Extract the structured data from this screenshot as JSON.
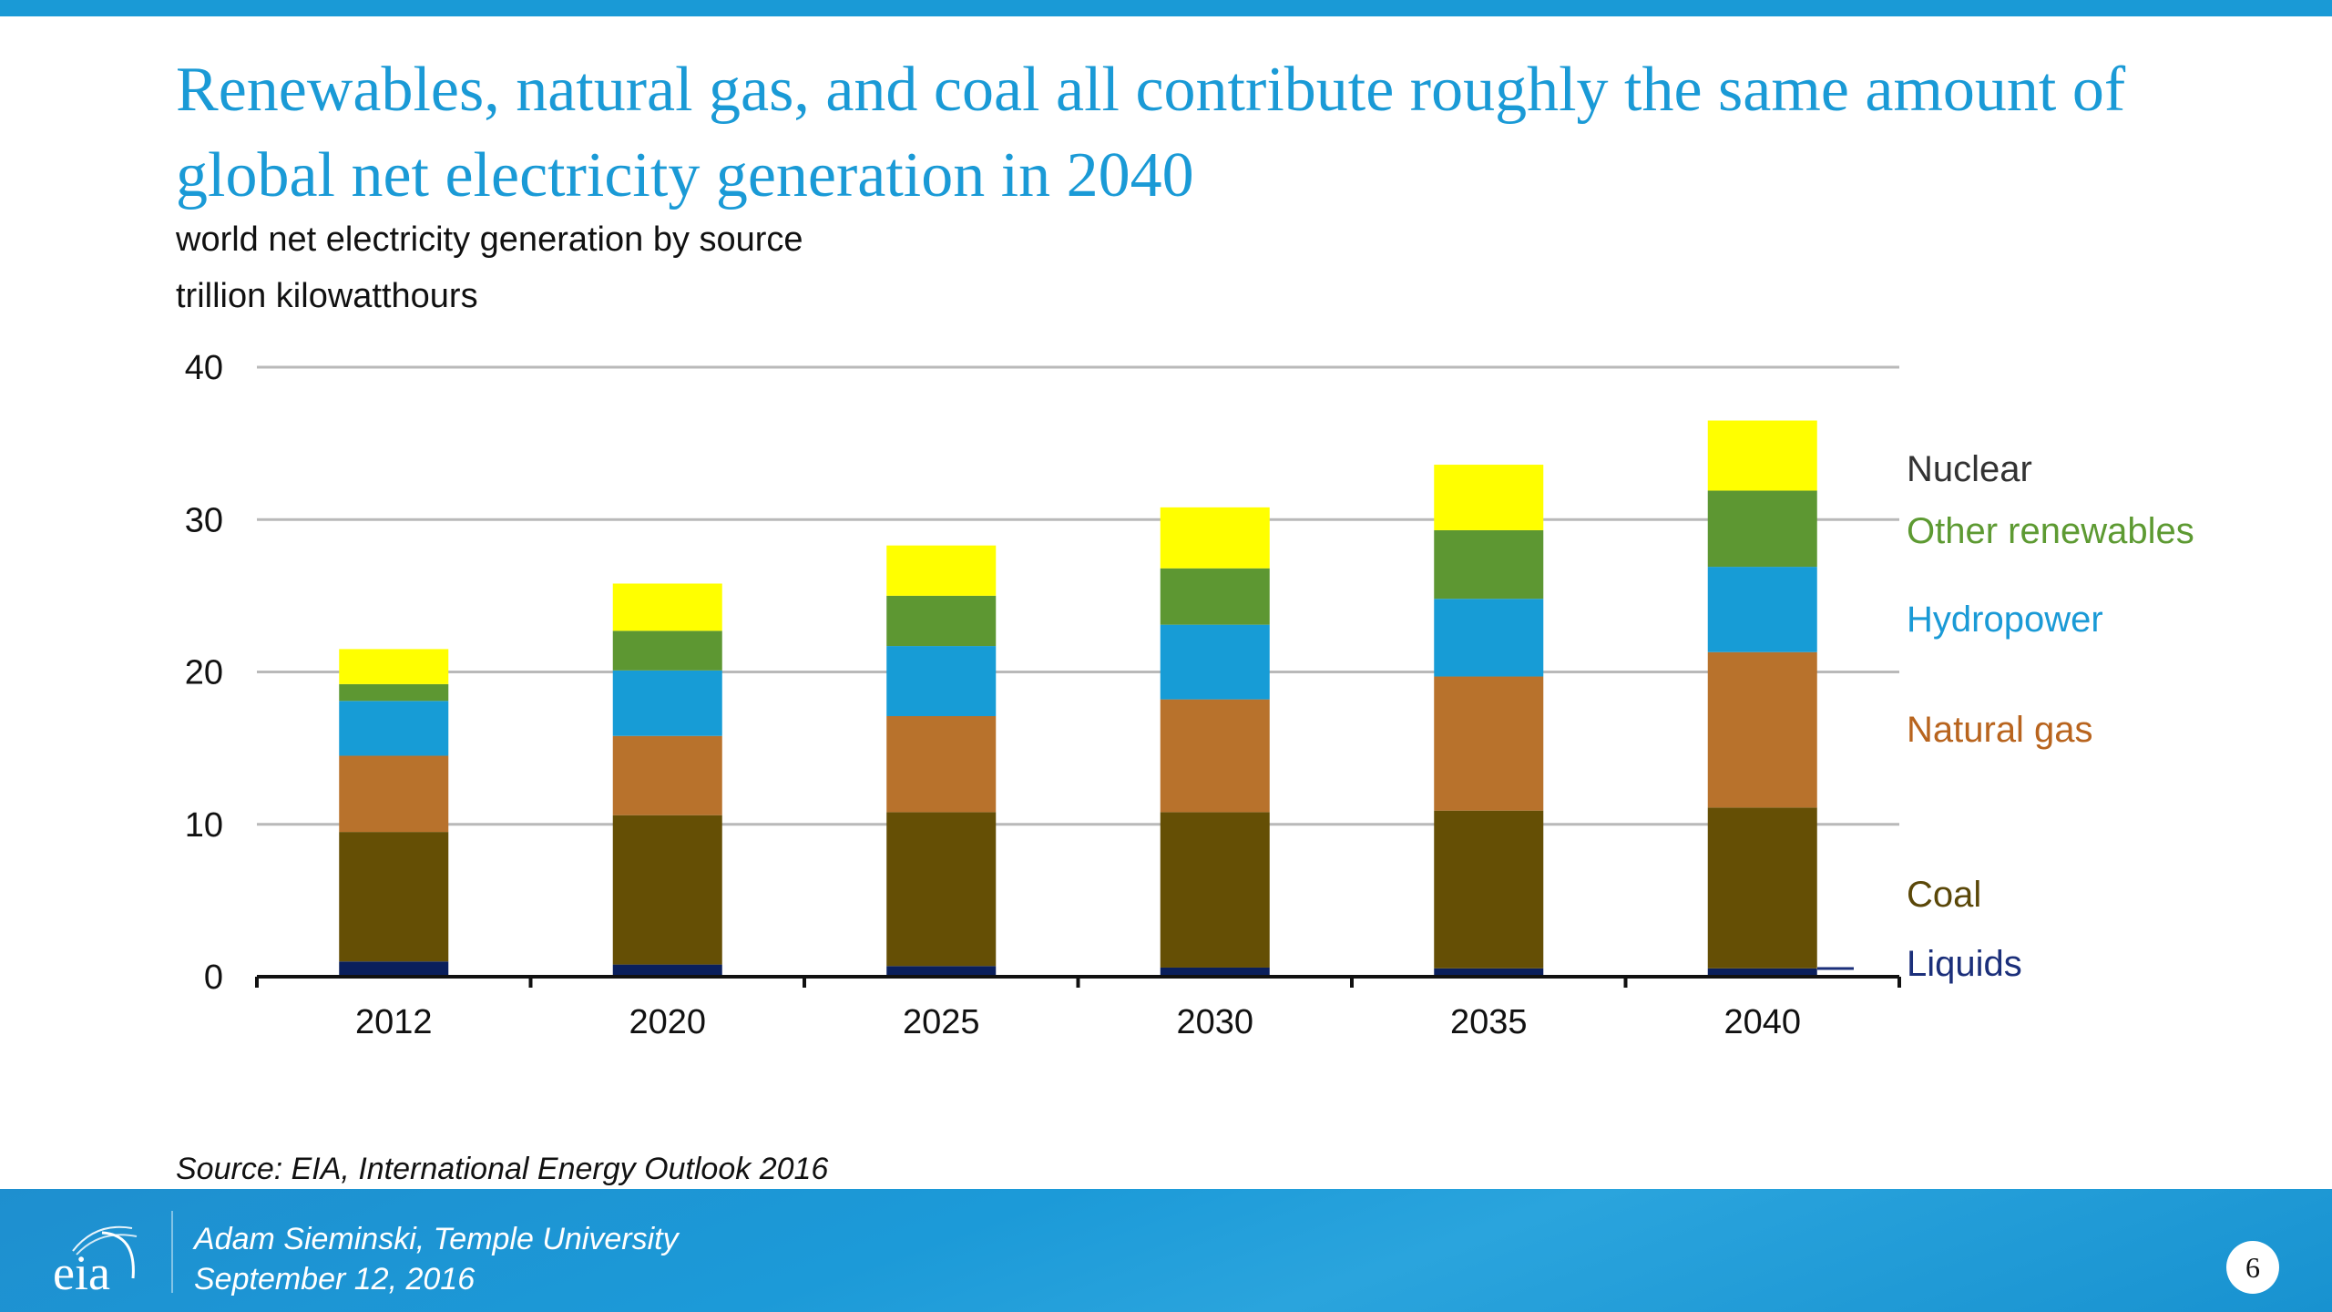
{
  "slide": {
    "title": "Renewables, natural gas, and coal all contribute roughly the same amount of global net electricity generation in 2040",
    "subtitle_line1": "world net electricity generation by source",
    "subtitle_line2": "trillion kilowatthours",
    "source": "Source:  EIA, International Energy Outlook 2016",
    "footer": {
      "logo_text": "eia",
      "presenter": "Adam Sieminski, Temple University",
      "date": "September 12, 2016",
      "page_number": "6"
    },
    "colors": {
      "accent": "#1a9ad6"
    }
  },
  "chart_data": {
    "type": "bar",
    "stacked": true,
    "title": "world net electricity generation by source",
    "ylabel": "trillion kilowatthours",
    "xlabel": "",
    "categories": [
      "2012",
      "2020",
      "2025",
      "2030",
      "2035",
      "2040"
    ],
    "ylim": [
      0,
      40
    ],
    "yticks": [
      0,
      10,
      20,
      30,
      40
    ],
    "grid": true,
    "legend_placement": "right",
    "series": [
      {
        "name": "Liquids",
        "color": "#0a1f5c",
        "label_color": "#1b2f7a",
        "values": [
          1.0,
          0.8,
          0.7,
          0.6,
          0.55,
          0.55
        ]
      },
      {
        "name": "Coal",
        "color": "#654f05",
        "label_color": "#5a4708",
        "values": [
          8.5,
          9.8,
          10.1,
          10.2,
          10.35,
          10.55
        ]
      },
      {
        "name": "Natural gas",
        "color": "#b8722c",
        "label_color": "#b8641e",
        "values": [
          5.0,
          5.2,
          6.3,
          7.4,
          8.8,
          10.2
        ]
      },
      {
        "name": "Hydropower",
        "color": "#179cd6",
        "label_color": "#1a9ad6",
        "values": [
          3.6,
          4.3,
          4.6,
          4.9,
          5.1,
          5.6
        ]
      },
      {
        "name": "Other renewables",
        "color": "#5d9732",
        "label_color": "#5d9a32",
        "values": [
          1.1,
          2.6,
          3.3,
          3.7,
          4.5,
          5.0
        ]
      },
      {
        "name": "Nuclear",
        "color": "#ffff00",
        "label_color": "#333333",
        "values": [
          2.3,
          3.1,
          3.3,
          4.0,
          4.3,
          4.6
        ]
      }
    ]
  }
}
